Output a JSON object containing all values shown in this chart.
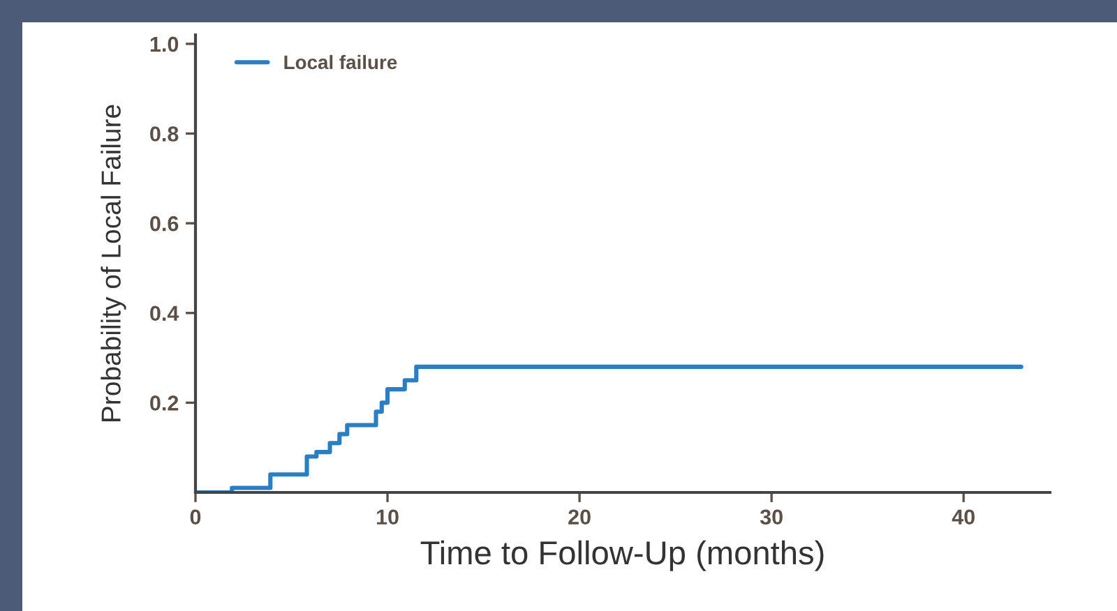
{
  "chart_data": {
    "type": "step",
    "xlabel": "Time to Follow-Up (months)",
    "ylabel": "Probability of Local Failure",
    "x": [
      0,
      1.9,
      3.9,
      5.8,
      6.3,
      7.0,
      7.5,
      7.9,
      9.4,
      9.7,
      10.0,
      10.9,
      11.5,
      43.0
    ],
    "series": [
      {
        "name": "Local failure",
        "color": "#2a7fc4",
        "values": [
          0,
          0.01,
          0.04,
          0.08,
          0.09,
          0.11,
          0.13,
          0.15,
          0.18,
          0.2,
          0.23,
          0.25,
          0.28,
          0.28
        ]
      }
    ],
    "xlim": [
      0,
      44.5
    ],
    "ylim": [
      0,
      1.02
    ],
    "xticks": [
      0,
      10,
      20,
      30,
      40
    ],
    "yticks": [
      0.2,
      0.4,
      0.6,
      0.8,
      {
        "value": 1,
        "label": "1.0"
      }
    ],
    "legend": "top left"
  }
}
